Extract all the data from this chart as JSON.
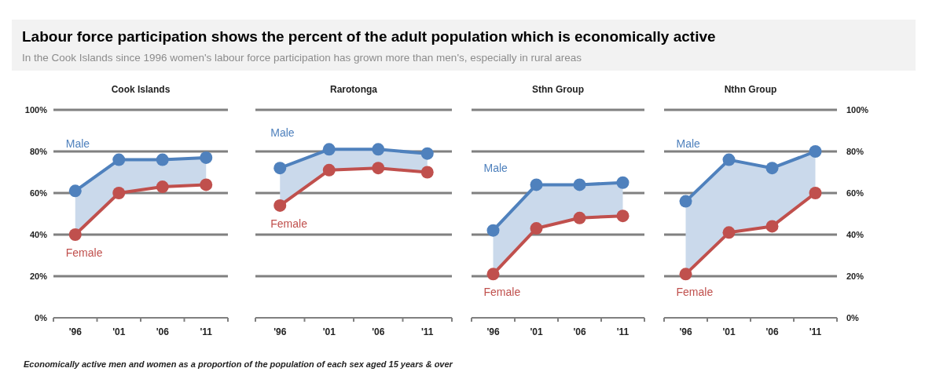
{
  "chart_data": [
    {
      "type": "other",
      "title": "Labour force participation shows the percent of the adult population which is economically active",
      "subtitle": "In the Cook Islands since 1996 women's labour force participation has grown more than men's, especially in rural areas",
      "annotations": [
        "Economically active men and women as a proportion of the population of each sex aged 15 years & over"
      ]
    },
    {
      "type": "line",
      "title": "Cook Islands",
      "categories": [
        "'96",
        "'01",
        "'06",
        "'11"
      ],
      "ylim": [
        0,
        100
      ],
      "yticks": [
        {
          "value": 0,
          "label": "0%"
        },
        {
          "value": 20,
          "label": "20%"
        },
        {
          "value": 40,
          "label": "40%"
        },
        {
          "value": 60,
          "label": "60%"
        },
        {
          "value": 80,
          "label": "80%"
        },
        {
          "value": 100,
          "label": "100%"
        }
      ],
      "grid": "y",
      "marker": "circle",
      "series": [
        {
          "name": "Male",
          "color": "#4f81bd",
          "values": [
            61,
            76,
            76,
            77
          ],
          "lower": [
            40,
            60,
            63,
            64
          ],
          "upper": [
            61,
            76,
            76,
            77
          ]
        },
        {
          "name": "Female",
          "color": "#c0504d",
          "values": [
            40,
            60,
            63,
            64
          ]
        }
      ]
    },
    {
      "type": "line",
      "title": "Rarotonga",
      "categories": [
        "'96",
        "'01",
        "'06",
        "'11"
      ],
      "ylim": [
        0,
        100
      ],
      "yticks": [
        0,
        20,
        40,
        60,
        80,
        100
      ],
      "tick_labels": "x",
      "grid": "y",
      "marker": "circle",
      "series": [
        {
          "name": "Male",
          "color": "#4f81bd",
          "values": [
            72,
            81,
            81,
            79
          ],
          "lower": [
            54,
            71,
            72,
            70
          ],
          "upper": [
            72,
            81,
            81,
            79
          ]
        },
        {
          "name": "Female",
          "color": "#c0504d",
          "values": [
            54,
            71,
            72,
            70
          ]
        }
      ]
    },
    {
      "type": "line",
      "title": "Sthn Group",
      "categories": [
        "'96",
        "'01",
        "'06",
        "'11"
      ],
      "ylim": [
        0,
        100
      ],
      "yticks": [
        0,
        20,
        40,
        60,
        80,
        100
      ],
      "tick_labels": "x",
      "grid": "y",
      "marker": "circle",
      "series": [
        {
          "name": "Male",
          "color": "#4f81bd",
          "values": [
            42,
            64,
            64,
            65
          ],
          "lower": [
            21,
            43,
            48,
            49
          ],
          "upper": [
            42,
            64,
            64,
            65
          ]
        },
        {
          "name": "Female",
          "color": "#c0504d",
          "values": [
            21,
            43,
            48,
            49
          ]
        }
      ]
    },
    {
      "type": "line",
      "title": "Nthn Group",
      "categories": [
        "'96",
        "'01",
        "'06",
        "'11"
      ],
      "y2lim": [
        0,
        100
      ],
      "y2ticks": [
        {
          "value": 0,
          "label": "0%"
        },
        {
          "value": 20,
          "label": "20%"
        },
        {
          "value": 40,
          "label": "40%"
        },
        {
          "value": 60,
          "label": "60%"
        },
        {
          "value": 80,
          "label": "80%"
        },
        {
          "value": 100,
          "label": "100%"
        }
      ],
      "grid": "y",
      "marker": "circle",
      "series": [
        {
          "name": "Male",
          "color": "#4f81bd",
          "axis": "y2",
          "values": [
            56,
            76,
            72,
            80
          ],
          "lower": [
            21,
            41,
            44,
            60
          ],
          "upper": [
            56,
            76,
            72,
            80
          ]
        },
        {
          "name": "Female",
          "color": "#c0504d",
          "axis": "y2",
          "values": [
            21,
            41,
            44,
            60
          ]
        }
      ]
    }
  ]
}
